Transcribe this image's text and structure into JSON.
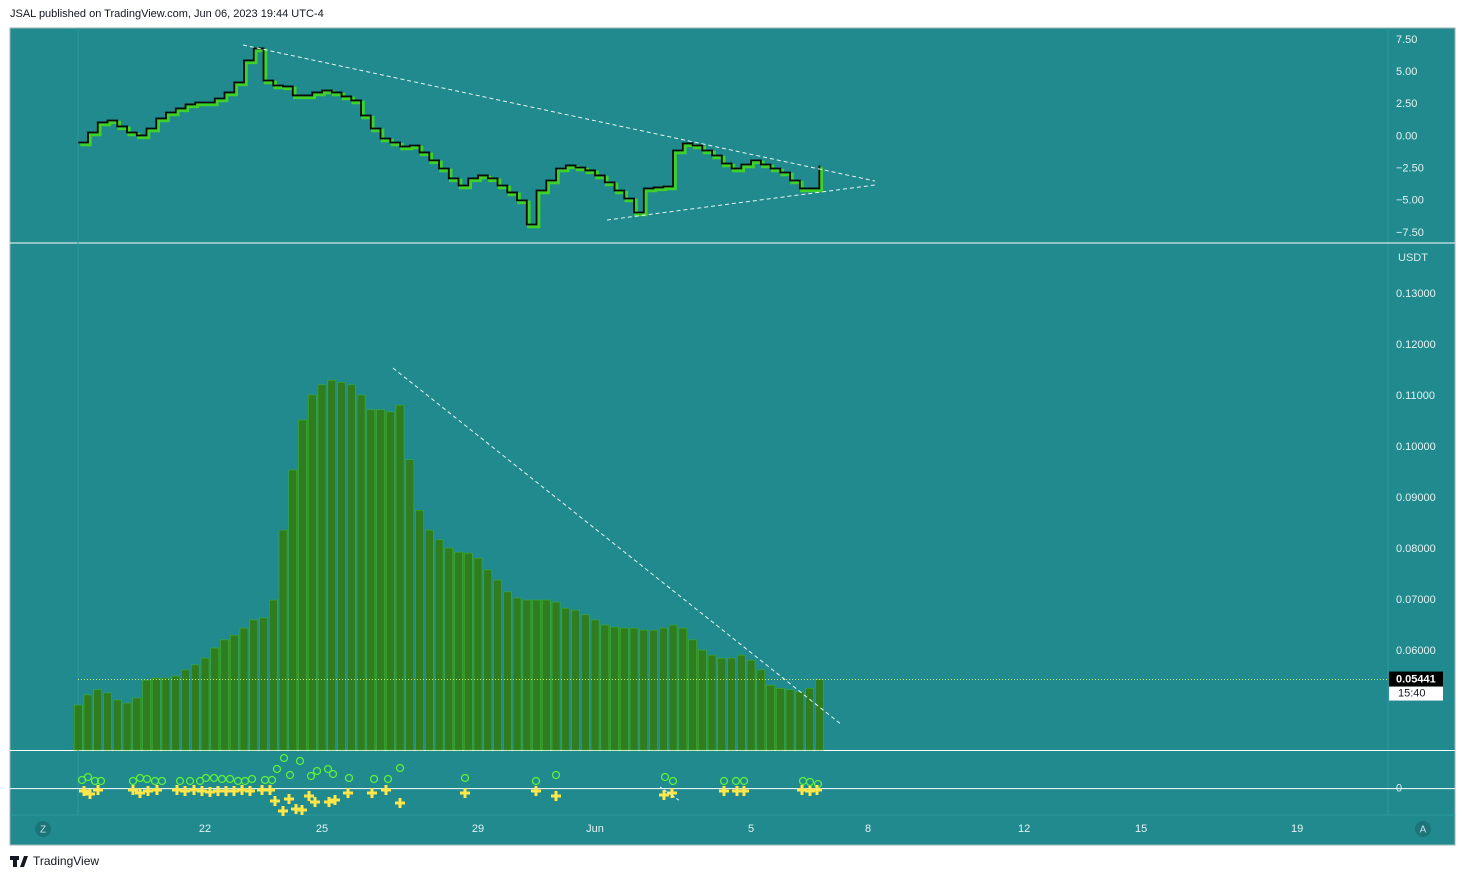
{
  "header": "JSAL published on TradingView.com, Jun 06, 2023 19:44 UTC-4",
  "footer": "TradingView",
  "buttons": [
    "Z",
    "A"
  ],
  "currency": "USDT",
  "last_price": 0.05441,
  "countdown": "15:40",
  "xlim": [
    17,
    52.33
  ],
  "xticks": [
    22,
    25,
    29,
    {
      "value": 32,
      "label": "Jun"
    },
    {
      "value": 36,
      "label": "5"
    },
    {
      "value": 39,
      "label": "8"
    },
    {
      "value": 43,
      "label": "12"
    },
    {
      "value": 46,
      "label": "15"
    },
    {
      "value": 50,
      "label": "19"
    }
  ],
  "x": [
    18.75,
    19,
    19.25,
    19.5,
    19.75,
    20,
    20.25,
    20.5,
    20.75,
    21,
    21.25,
    21.5,
    21.75,
    22,
    22.25,
    22.5,
    22.75,
    23,
    23.25,
    23.5,
    23.75,
    24,
    24.25,
    24.5,
    24.75,
    25,
    25.25,
    25.5,
    25.75,
    26,
    26.25,
    26.5,
    26.75,
    27,
    27.25,
    27.5,
    27.75,
    28,
    28.25,
    28.5,
    28.75,
    29,
    29.25,
    29.5,
    29.75,
    30,
    30.25,
    30.5,
    30.75,
    31,
    31.25,
    31.5,
    31.75,
    32,
    32.25,
    32.5,
    32.75,
    33,
    33.25,
    33.5,
    33.75,
    34,
    34.25,
    34.5,
    34.75,
    35,
    35.25,
    35.5,
    35.75,
    36,
    36.25,
    36.5,
    36.75,
    37,
    37.25,
    37.5,
    37.75
  ],
  "chart_data": [
    {
      "type": "line",
      "color": "#3fd12a",
      "ylim": [
        -8.28,
        8.43
      ],
      "yticks": [
        {
          "value": 7.5,
          "label": "7.50"
        },
        {
          "value": 5,
          "label": "5.00"
        },
        {
          "value": 2.5,
          "label": "2.50"
        },
        {
          "value": 0,
          "label": "0.00"
        },
        {
          "value": -2.5,
          "label": "−2.50"
        },
        {
          "value": -5,
          "label": "−5.00"
        },
        {
          "value": -7.5,
          "label": "−7.50"
        }
      ],
      "values": [
        -0.47,
        0.31,
        1.09,
        1.24,
        0.78,
        0.31,
        0.08,
        0.62,
        1.4,
        1.86,
        2.18,
        2.49,
        2.64,
        2.64,
        2.95,
        3.42,
        4.2,
        5.91,
        6.84,
        4.35,
        3.96,
        3.89,
        3.19,
        3.19,
        3.42,
        3.57,
        3.42,
        3.11,
        2.8,
        1.63,
        0.62,
        -0.16,
        -0.47,
        -0.78,
        -0.7,
        -1.24,
        -1.86,
        -2.49,
        -3.26,
        -3.81,
        -3.26,
        -3.03,
        -3.26,
        -3.81,
        -4.35,
        -4.97,
        -6.84,
        -4.2,
        -3.42,
        -2.49,
        -2.25,
        -2.41,
        -2.64,
        -3.03,
        -3.57,
        -4.2,
        -4.82,
        -5.91,
        -4.04,
        -3.96,
        -3.89,
        -1.09,
        -0.54,
        -0.7,
        -1.09,
        -1.48,
        -2.1,
        -2.49,
        -2.18,
        -1.86,
        -2.18,
        -2.49,
        -2.8,
        -3.42,
        -4.04,
        -4.04,
        -2.25
      ]
    },
    {
      "type": "bar",
      "color": "#2f7d1f",
      "ylim": [
        0.0406,
        0.14
      ],
      "yticks": [
        {
          "value": 0.13,
          "label": "0.13000"
        },
        {
          "value": 0.12,
          "label": "0.12000"
        },
        {
          "value": 0.11,
          "label": "0.11000"
        },
        {
          "value": 0.1,
          "label": "0.10000"
        },
        {
          "value": 0.09,
          "label": "0.09000"
        },
        {
          "value": 0.08,
          "label": "0.08000"
        },
        {
          "value": 0.07,
          "label": "0.07000"
        },
        {
          "value": 0.06,
          "label": "0.06000"
        }
      ],
      "values": [
        0.0494,
        0.0514,
        0.0524,
        0.0518,
        0.0504,
        0.0498,
        0.0508,
        0.0543,
        0.0547,
        0.0547,
        0.0551,
        0.0563,
        0.0573,
        0.0586,
        0.0606,
        0.0622,
        0.0631,
        0.0645,
        0.0661,
        0.0665,
        0.07,
        0.0837,
        0.0955,
        0.1053,
        0.1102,
        0.1122,
        0.1131,
        0.1127,
        0.1122,
        0.1102,
        0.1073,
        0.1073,
        0.1069,
        0.1082,
        0.0975,
        0.0876,
        0.0837,
        0.0818,
        0.0802,
        0.0794,
        0.0792,
        0.0782,
        0.0759,
        0.0739,
        0.0716,
        0.0704,
        0.07,
        0.07,
        0.07,
        0.0696,
        0.0684,
        0.068,
        0.0671,
        0.0661,
        0.0651,
        0.0647,
        0.0645,
        0.0645,
        0.0641,
        0.0641,
        0.0645,
        0.0651,
        0.0645,
        0.0622,
        0.0602,
        0.0592,
        0.0586,
        0.0586,
        0.0592,
        0.0582,
        0.0563,
        0.0533,
        0.0527,
        0.0524,
        0.052,
        0.0527,
        0.0544
      ]
    },
    {
      "type": "marker",
      "ylim": [
        -0.7,
        1
      ],
      "yticks": [
        0
      ]
    }
  ]
}
